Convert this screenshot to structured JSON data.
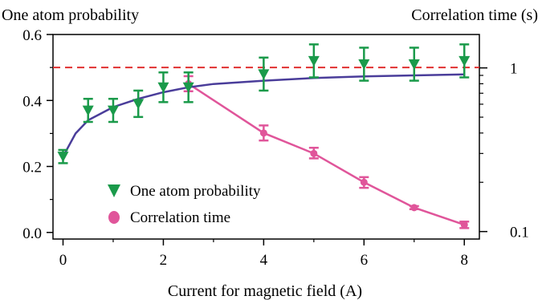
{
  "chart_data": {
    "type": "scatter",
    "left_axis_title": "One atom probability",
    "right_axis_title": "Correlation time (s)",
    "xlabel": "Current for magnetic field (A)",
    "xlim": [
      -0.2,
      8.3
    ],
    "ylim_left": [
      -0.02,
      0.6
    ],
    "ylim_right": [
      0.09,
      1.6
    ],
    "right_axis_scale": "log",
    "x_ticks": [
      "0",
      "2",
      "4",
      "6",
      "8"
    ],
    "y_left_ticks": [
      "0.0",
      "0.2",
      "0.4",
      "0.6"
    ],
    "y_right_ticks": [
      "1",
      "0.1"
    ],
    "reference_line": {
      "y": 0.5,
      "style": "dashed",
      "color": "#e03030"
    },
    "series": [
      {
        "name": "One atom probability",
        "marker": "triangle-down",
        "color": "#1a9a4a",
        "axis": "left",
        "x": [
          0,
          0.5,
          1,
          1.5,
          2,
          2.5,
          4,
          5,
          6,
          7,
          8
        ],
        "y": [
          0.23,
          0.37,
          0.37,
          0.39,
          0.44,
          0.44,
          0.48,
          0.52,
          0.51,
          0.51,
          0.52
        ],
        "err": [
          0.02,
          0.035,
          0.035,
          0.04,
          0.045,
          0.045,
          0.05,
          0.05,
          0.05,
          0.05,
          0.05
        ]
      },
      {
        "name": "Correlation time",
        "marker": "circle",
        "color": "#e0559a",
        "axis": "right",
        "x": [
          2.5,
          4,
          5,
          6,
          7,
          8
        ],
        "y": [
          0.8,
          0.4,
          0.3,
          0.2,
          0.14,
          0.11
        ],
        "err_low": [
          0.72,
          0.36,
          0.28,
          0.185,
          0.137,
          0.105
        ],
        "err_high": [
          0.89,
          0.445,
          0.325,
          0.215,
          0.143,
          0.115
        ]
      },
      {
        "type": "fit_curve",
        "color": "#4a3d9a",
        "axis": "left",
        "x": [
          0,
          0.25,
          0.5,
          1,
          1.5,
          2,
          2.5,
          3,
          4,
          5,
          6,
          7,
          8
        ],
        "y": [
          0.23,
          0.3,
          0.34,
          0.38,
          0.405,
          0.425,
          0.44,
          0.45,
          0.46,
          0.468,
          0.473,
          0.476,
          0.479
        ]
      }
    ]
  }
}
